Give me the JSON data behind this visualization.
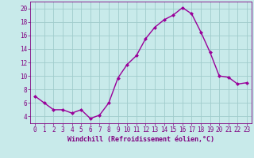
{
  "x": [
    0,
    1,
    2,
    3,
    4,
    5,
    6,
    7,
    8,
    9,
    10,
    11,
    12,
    13,
    14,
    15,
    16,
    17,
    18,
    19,
    20,
    21,
    22,
    23
  ],
  "y": [
    7,
    6,
    5,
    5,
    4.5,
    5,
    3.7,
    4.2,
    6,
    9.7,
    11.7,
    13,
    15.5,
    17.2,
    18.3,
    19.0,
    20.1,
    19.2,
    16.5,
    13.5,
    10,
    9.8,
    8.8,
    9
  ],
  "line_color": "#990099",
  "marker": "D",
  "marker_size": 2,
  "bg_color": "#c8eaea",
  "grid_color": "#a0cccc",
  "xlabel": "Windchill (Refroidissement éolien,°C)",
  "xlim_lo": -0.5,
  "xlim_hi": 23.5,
  "ylim_lo": 3,
  "ylim_hi": 21,
  "yticks": [
    4,
    6,
    8,
    10,
    12,
    14,
    16,
    18,
    20
  ],
  "xticks": [
    0,
    1,
    2,
    3,
    4,
    5,
    6,
    7,
    8,
    9,
    10,
    11,
    12,
    13,
    14,
    15,
    16,
    17,
    18,
    19,
    20,
    21,
    22,
    23
  ],
  "tick_color": "#800080",
  "label_fontsize": 6,
  "tick_fontsize": 5.5,
  "linewidth": 1.0
}
